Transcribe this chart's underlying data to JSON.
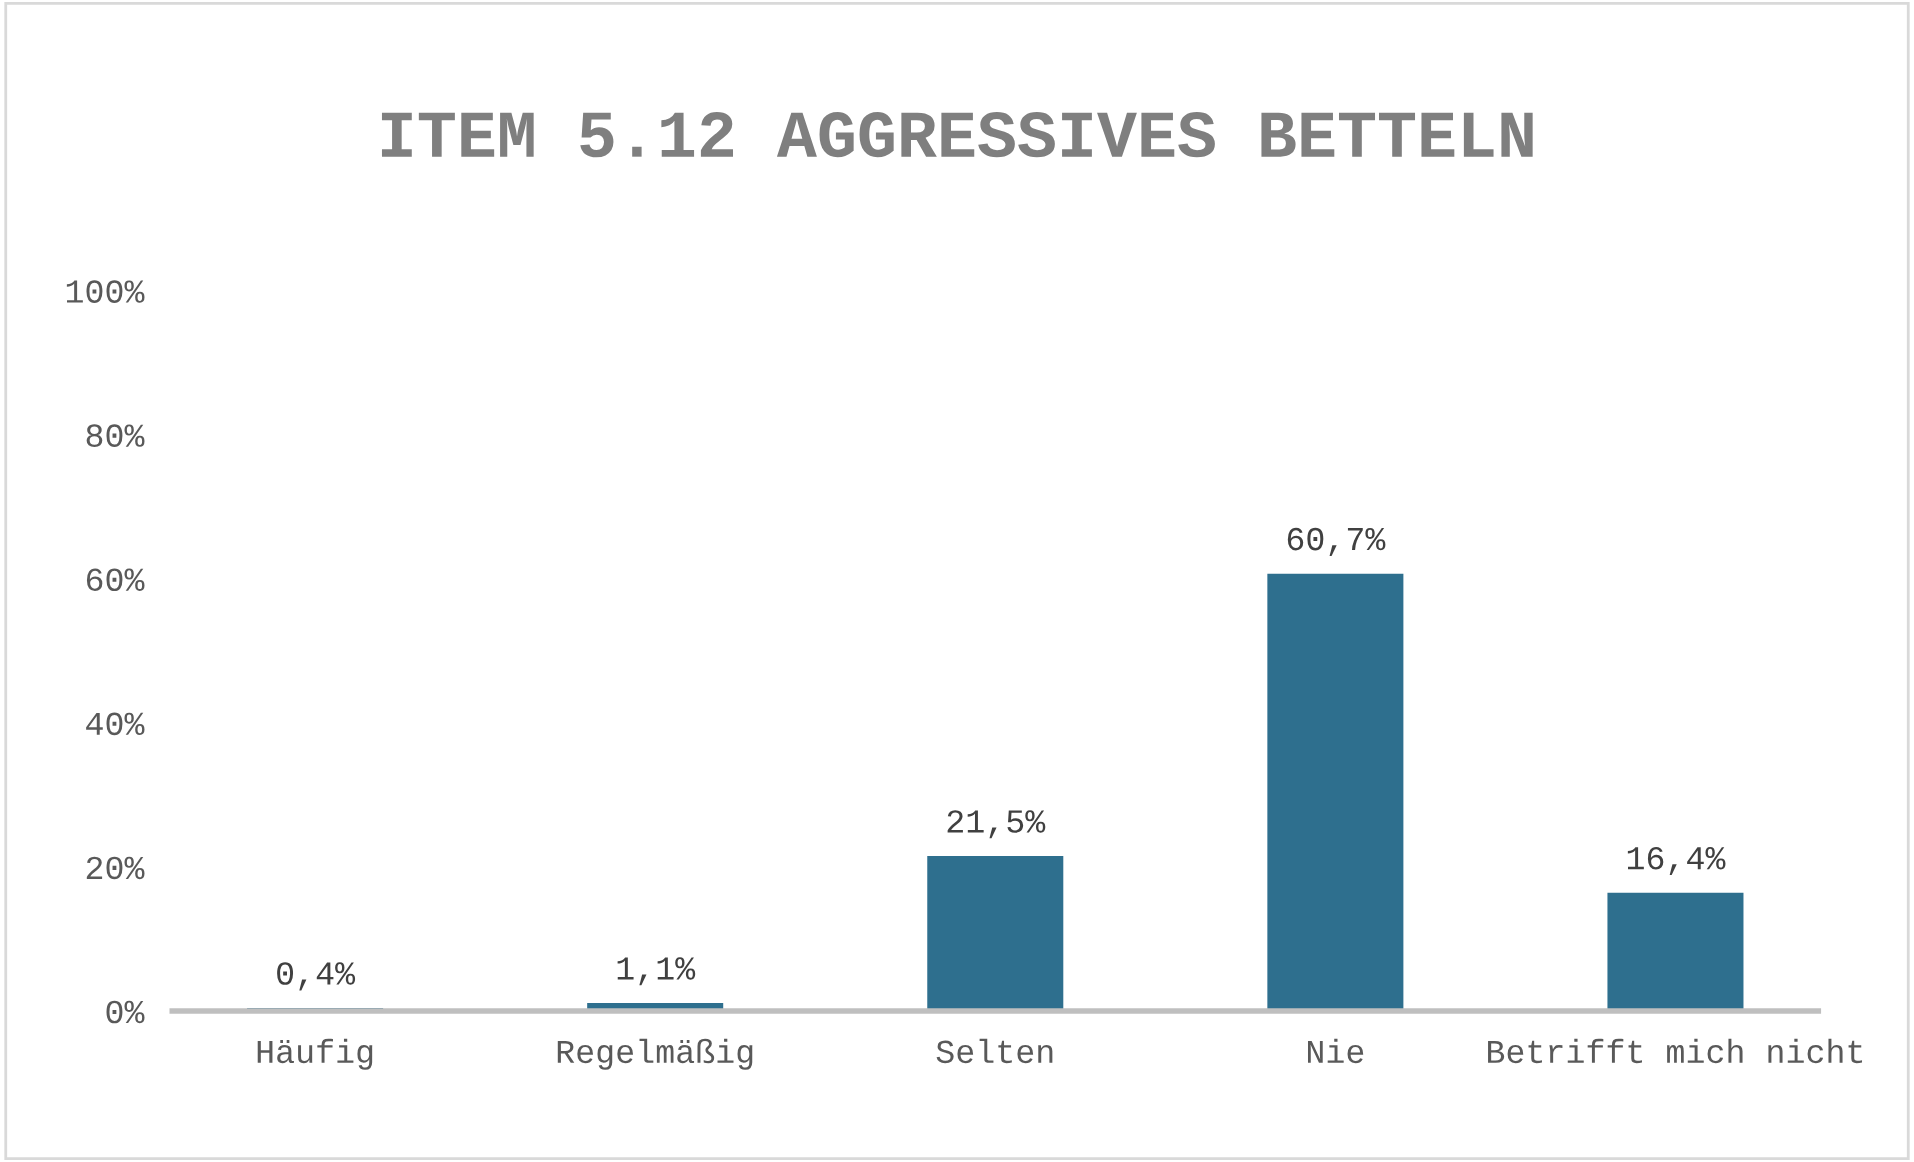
{
  "chart_data": {
    "type": "bar",
    "title": "ITEM 5.12 AGGRESSIVES BETTELN",
    "categories": [
      "Häufig",
      "Regelmäßig",
      "Selten",
      "Nie",
      "Betrifft mich nicht"
    ],
    "values": [
      0.4,
      1.1,
      21.5,
      60.7,
      16.4
    ],
    "value_labels": [
      "0,4%",
      "1,1%",
      "21,5%",
      "60,7%",
      "16,4%"
    ],
    "color": "#2e6f8e",
    "ylim": [
      0,
      100
    ],
    "yticks": [
      {
        "value": 0,
        "label": "0%"
      },
      {
        "value": 20,
        "label": "20%"
      },
      {
        "value": 40,
        "label": "40%"
      },
      {
        "value": 60,
        "label": "60%"
      },
      {
        "value": 80,
        "label": "80%"
      },
      {
        "value": 100,
        "label": "100%"
      }
    ],
    "grid": false,
    "legend": false
  }
}
